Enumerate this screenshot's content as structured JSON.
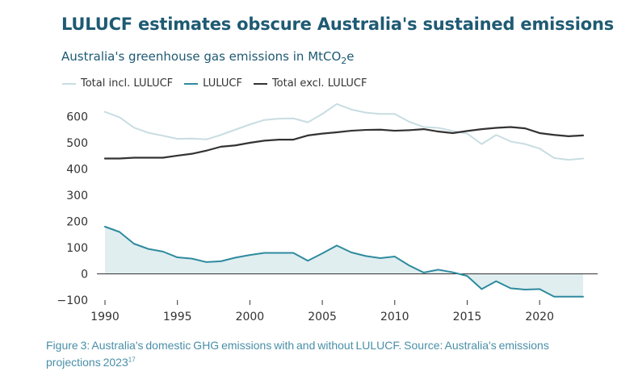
{
  "chart_data": {
    "type": "line",
    "title": "LULUCF estimates obscure Australia's sustained emissions",
    "subtitle_main": "Australia's greenhouse gas emissions in MtCO",
    "subtitle_sub": "2",
    "subtitle_tail": "e",
    "xlabel": "",
    "ylabel": "",
    "xlim": [
      1990,
      2023
    ],
    "ylim": [
      -100,
      650
    ],
    "y_ticks": [
      -100,
      0,
      100,
      200,
      300,
      400,
      500,
      600
    ],
    "x_ticks": [
      1990,
      1995,
      2000,
      2005,
      2010,
      2015,
      2020
    ],
    "x": [
      1990,
      1991,
      1992,
      1993,
      1994,
      1995,
      1996,
      1997,
      1998,
      1999,
      2000,
      2001,
      2002,
      2003,
      2004,
      2005,
      2006,
      2007,
      2008,
      2009,
      2010,
      2011,
      2012,
      2013,
      2014,
      2015,
      2016,
      2017,
      2018,
      2019,
      2020,
      2021,
      2022,
      2023
    ],
    "legend_position": "top-left",
    "series": [
      {
        "name": "Total incl. LULUCF",
        "color": "#c8dde2",
        "values": [
          618,
          597,
          558,
          538,
          527,
          515,
          516,
          513,
          530,
          550,
          570,
          587,
          592,
          593,
          578,
          610,
          648,
          627,
          615,
          610,
          610,
          580,
          560,
          557,
          545,
          535,
          495,
          530,
          505,
          495,
          478,
          442,
          435,
          440
        ]
      },
      {
        "name": "LULUCF",
        "color": "#2e8a9e",
        "fill": "#e0eef0",
        "values": [
          180,
          160,
          115,
          95,
          85,
          63,
          58,
          45,
          48,
          62,
          72,
          80,
          80,
          80,
          50,
          78,
          108,
          82,
          68,
          60,
          66,
          32,
          5,
          16,
          6,
          -8,
          -58,
          -28,
          -55,
          -60,
          -58,
          -87,
          -87,
          -87
        ]
      },
      {
        "name": "Total excl. LULUCF",
        "color": "#333333",
        "values": [
          440,
          440,
          443,
          443,
          443,
          451,
          458,
          470,
          485,
          490,
          500,
          508,
          512,
          512,
          528,
          535,
          540,
          546,
          549,
          550,
          546,
          548,
          552,
          543,
          537,
          545,
          552,
          557,
          560,
          555,
          537,
          530,
          525,
          528
        ]
      }
    ]
  },
  "caption": {
    "text": "Figure 3: Australia's domestic GHG emissions with and without LULUCF. Source: Australia's emissions projections 2023",
    "superscript": "17"
  }
}
